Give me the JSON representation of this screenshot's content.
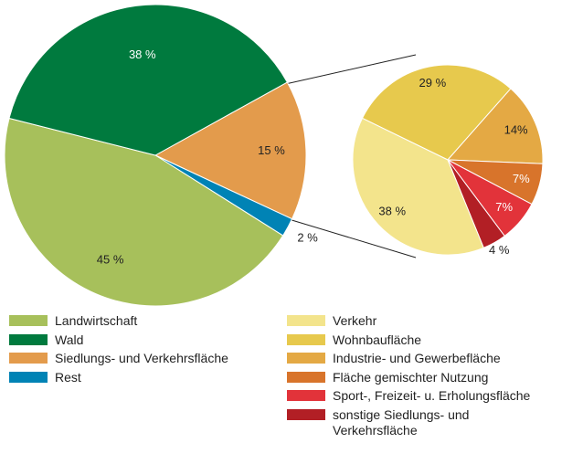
{
  "chart_data": [
    {
      "type": "pie",
      "categories": [
        "Siedlungs- und Verkehrsfläche",
        "Rest",
        "Landwirtschaft",
        "Wald"
      ],
      "values": [
        15,
        2,
        45,
        38
      ],
      "value_labels": [
        "15 %",
        "2 %",
        "45 %",
        "38 %"
      ],
      "colors": [
        "#e39b4c",
        "#0083b5",
        "#a7c05b",
        "#007a3e"
      ]
    },
    {
      "type": "pie",
      "categories": [
        "Wohnbaufläche",
        "Industrie- und Gewerbefläche",
        "Fläche gemischter Nutzung",
        "Sport-, Freizeit- u. Erholungsfläche",
        "sonstige Siedlungs- und Verkehrsfläche",
        "Verkehr"
      ],
      "values": [
        29,
        14,
        7,
        7,
        4,
        38
      ],
      "value_labels": [
        "29 %",
        "14%",
        "7%",
        "7%",
        "4 %",
        "38 %"
      ],
      "colors": [
        "#e7c94d",
        "#e4a944",
        "#d8742b",
        "#e2333a",
        "#b21f25",
        "#f3e48c"
      ]
    }
  ]
}
